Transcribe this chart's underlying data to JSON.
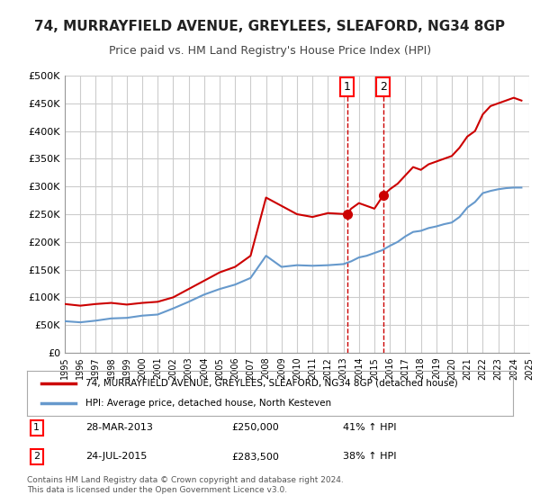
{
  "title": "74, MURRAYFIELD AVENUE, GREYLEES, SLEAFORD, NG34 8GP",
  "subtitle": "Price paid vs. HM Land Registry's House Price Index (HPI)",
  "title_fontsize": 11,
  "subtitle_fontsize": 9,
  "xlabel": "",
  "ylabel": "",
  "ylim": [
    0,
    500000
  ],
  "yticks": [
    0,
    50000,
    100000,
    150000,
    200000,
    250000,
    300000,
    350000,
    400000,
    450000,
    500000
  ],
  "ytick_labels": [
    "£0",
    "£50K",
    "£100K",
    "£150K",
    "£200K",
    "£250K",
    "£300K",
    "£350K",
    "£400K",
    "£450K",
    "£500K"
  ],
  "background_color": "#ffffff",
  "plot_bg_color": "#ffffff",
  "grid_color": "#cccccc",
  "property_color": "#cc0000",
  "hpi_color": "#6699cc",
  "transaction1_date": 2013.23,
  "transaction1_price": 250000,
  "transaction2_date": 2015.56,
  "transaction2_price": 283500,
  "legend_property": "74, MURRAYFIELD AVENUE, GREYLEES, SLEAFORD, NG34 8GP (detached house)",
  "legend_hpi": "HPI: Average price, detached house, North Kesteven",
  "table_rows": [
    {
      "num": "1",
      "date": "28-MAR-2013",
      "price": "£250,000",
      "hpi": "41% ↑ HPI"
    },
    {
      "num": "2",
      "date": "24-JUL-2015",
      "price": "£283,500",
      "hpi": "38% ↑ HPI"
    }
  ],
  "footer": "Contains HM Land Registry data © Crown copyright and database right 2024.\nThis data is licensed under the Open Government Licence v3.0.",
  "property_line": {
    "years": [
      1995,
      1996,
      1997,
      1998,
      1999,
      2000,
      2001,
      2002,
      2003,
      2004,
      2005,
      2006,
      2007,
      2008,
      2009,
      2010,
      2011,
      2012,
      2013.23,
      2013.5,
      2014,
      2014.5,
      2015,
      2015.56,
      2016,
      2016.5,
      2017,
      2017.5,
      2018,
      2018.5,
      2019,
      2019.5,
      2020,
      2020.5,
      2021,
      2021.5,
      2022,
      2022.5,
      2023,
      2023.5,
      2024,
      2024.5
    ],
    "values": [
      88000,
      85000,
      88000,
      90000,
      87000,
      90000,
      92000,
      100000,
      115000,
      130000,
      145000,
      155000,
      175000,
      280000,
      265000,
      250000,
      245000,
      252000,
      250000,
      260000,
      270000,
      265000,
      260000,
      283500,
      295000,
      305000,
      320000,
      335000,
      330000,
      340000,
      345000,
      350000,
      355000,
      370000,
      390000,
      400000,
      430000,
      445000,
      450000,
      455000,
      460000,
      455000
    ]
  },
  "hpi_line": {
    "years": [
      1995,
      1996,
      1997,
      1998,
      1999,
      2000,
      2001,
      2002,
      2003,
      2004,
      2005,
      2006,
      2007,
      2008,
      2009,
      2010,
      2011,
      2012,
      2013,
      2013.5,
      2014,
      2014.5,
      2015,
      2015.5,
      2016,
      2016.5,
      2017,
      2017.5,
      2018,
      2018.5,
      2019,
      2019.5,
      2020,
      2020.5,
      2021,
      2021.5,
      2022,
      2022.5,
      2023,
      2023.5,
      2024,
      2024.5
    ],
    "values": [
      57000,
      55000,
      58000,
      62000,
      63000,
      67000,
      69000,
      80000,
      92000,
      105000,
      115000,
      123000,
      135000,
      175000,
      155000,
      158000,
      157000,
      158000,
      160000,
      165000,
      172000,
      175000,
      180000,
      185000,
      193000,
      200000,
      210000,
      218000,
      220000,
      225000,
      228000,
      232000,
      235000,
      245000,
      262000,
      272000,
      288000,
      292000,
      295000,
      297000,
      298000,
      298000
    ]
  }
}
